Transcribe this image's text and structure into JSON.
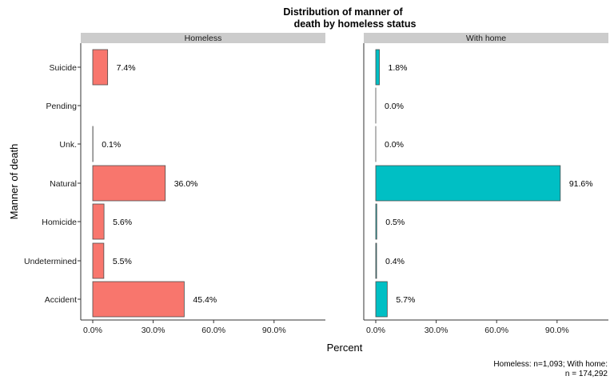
{
  "chart_data": {
    "type": "bar",
    "orientation": "horizontal",
    "title_lines": [
      "Distribution of manner of",
      "death by homeless status"
    ],
    "xlabel": "Percent",
    "ylabel": "Manner of death",
    "caption_lines": [
      "Homeless: n=1,093; With home:",
      "n = 174,292"
    ],
    "categories": [
      "Suicide",
      "Pending",
      "Unk.",
      "Natural",
      "Homicide",
      "Undetermined",
      "Accident"
    ],
    "xlim": [
      0,
      115
    ],
    "x_ticks": [
      0,
      30,
      60,
      90
    ],
    "x_tick_labels": [
      "0.0%",
      "30.0%",
      "60.0%",
      "90.0%"
    ],
    "grid": false,
    "legend": "none",
    "panels": [
      {
        "strip": "Homeless",
        "color": "#F8766D",
        "values": [
          7.4,
          0.0,
          0.1,
          36.0,
          5.6,
          5.5,
          45.4
        ],
        "labels": [
          "7.4%",
          "",
          "0.1%",
          "36.0%",
          "5.6%",
          "5.5%",
          "45.4%"
        ]
      },
      {
        "strip": "With home",
        "color": "#00BFC4",
        "values": [
          1.8,
          0.0,
          0.0,
          91.6,
          0.5,
          0.4,
          5.7
        ],
        "labels": [
          "1.8%",
          "0.0%",
          "0.0%",
          "91.6%",
          "0.5%",
          "0.4%",
          "5.7%"
        ]
      }
    ],
    "strip_fill": "#CCCCCC",
    "bar_outline": "#4D4D4D"
  }
}
